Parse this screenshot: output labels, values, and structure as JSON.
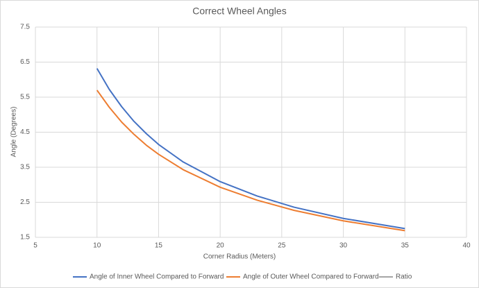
{
  "chart_data": {
    "type": "line",
    "title": "Correct Wheel Angles",
    "x_label": "Corner Radius (Meters)",
    "y_label": "Angle (Degrees)",
    "x": [
      10,
      11,
      12,
      13,
      14,
      15,
      17,
      20,
      23,
      26,
      30,
      35
    ],
    "series": [
      {
        "name": "Angle of Inner Wheel Compared to Forward",
        "color": "#4472c4",
        "values": [
          6.32,
          5.72,
          5.23,
          4.81,
          4.46,
          4.15,
          3.65,
          3.09,
          2.68,
          2.36,
          2.04,
          1.75
        ]
      },
      {
        "name": "Angle of Outer Wheel Compared to Forward",
        "color": "#ed7d31",
        "values": [
          5.7,
          5.21,
          4.79,
          4.44,
          4.13,
          3.87,
          3.43,
          2.93,
          2.56,
          2.27,
          1.97,
          1.69
        ]
      },
      {
        "name": "Ratio",
        "color": "#a5a5a5",
        "values": [
          null,
          null,
          null,
          null,
          null,
          null,
          null,
          null,
          null,
          null,
          null,
          null
        ]
      }
    ],
    "xlim": [
      5,
      40
    ],
    "xticks": [
      5,
      10,
      15,
      20,
      25,
      30,
      35,
      40
    ],
    "ylim": [
      1.5,
      7.5
    ],
    "yticks": [
      1.5,
      2.5,
      3.5,
      4.5,
      5.5,
      6.5,
      7.5
    ],
    "grid": true,
    "legend": "bottom"
  }
}
